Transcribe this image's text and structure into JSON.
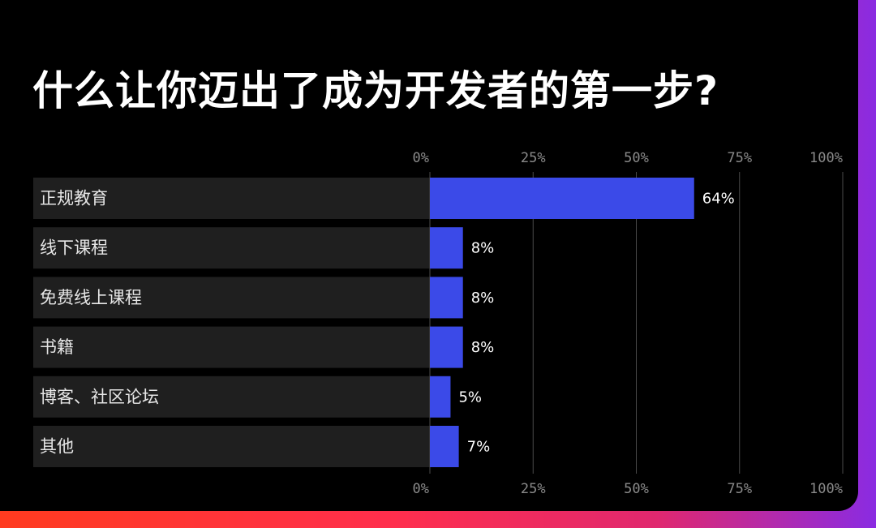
{
  "chart_data": {
    "type": "bar",
    "orientation": "horizontal",
    "title": "什么让你迈出了成为开发者的第一步?",
    "categories": [
      "正规教育",
      "线下课程",
      "免费线上课程",
      "书籍",
      "博客、社区论坛",
      "其他"
    ],
    "values": [
      64,
      8,
      8,
      8,
      5,
      7
    ],
    "value_labels": [
      "64%",
      "8%",
      "8%",
      "8%",
      "5%",
      "7%"
    ],
    "xlim": [
      0,
      100
    ],
    "ticks": [
      0,
      25,
      50,
      75,
      100
    ],
    "tick_labels": [
      "0%",
      "25%",
      "50%",
      "75%",
      "100%"
    ],
    "grid": true,
    "colors": {
      "bar": "#3b4ae8",
      "row_background": "#1f1f1f",
      "grid": "#4a4a4a",
      "card": "#000000"
    }
  }
}
